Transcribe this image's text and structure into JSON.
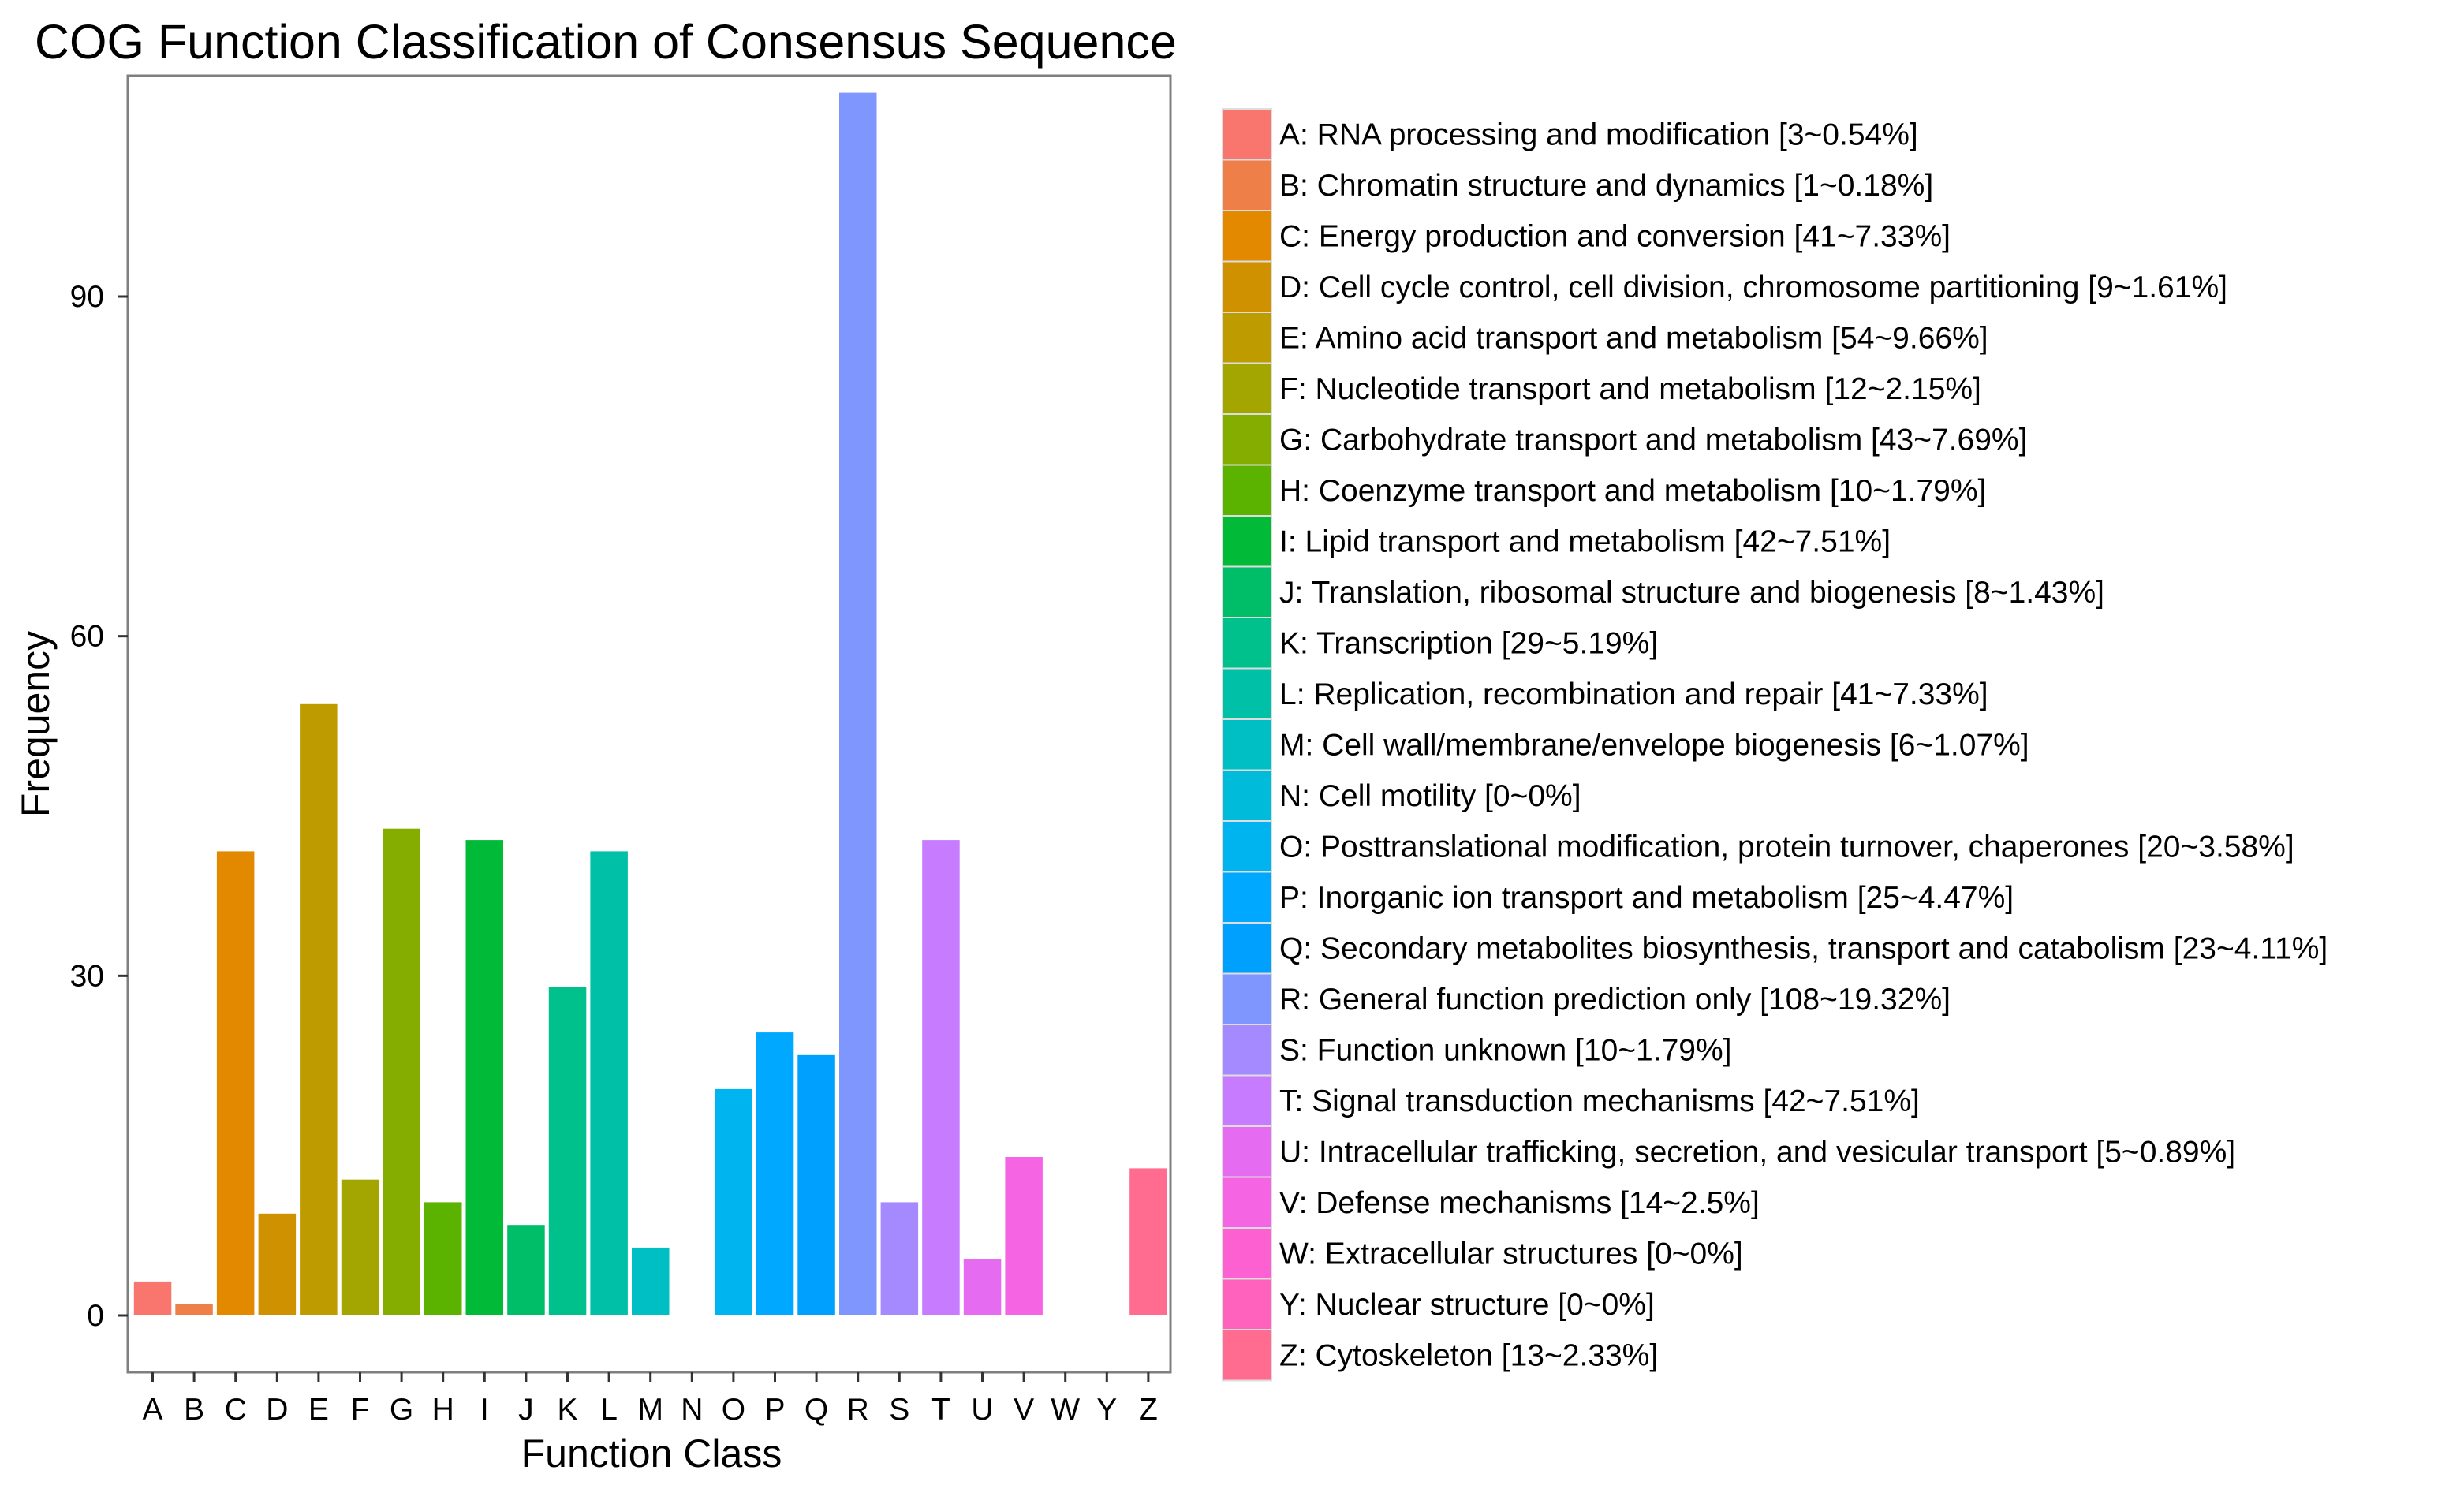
{
  "chart_data": {
    "type": "bar",
    "title": "COG Function Classification of Consensus Sequence",
    "xlabel": "Function Class",
    "ylabel": "Frequency",
    "ylim": [
      0,
      113
    ],
    "yticks": [
      0,
      30,
      60,
      90
    ],
    "grid": false,
    "legend_position": "right",
    "categories": [
      "A",
      "B",
      "C",
      "D",
      "E",
      "F",
      "G",
      "H",
      "I",
      "J",
      "K",
      "L",
      "M",
      "N",
      "O",
      "P",
      "Q",
      "R",
      "S",
      "T",
      "U",
      "V",
      "W",
      "Y",
      "Z"
    ],
    "values": [
      3,
      1,
      41,
      9,
      54,
      12,
      43,
      10,
      42,
      8,
      29,
      41,
      6,
      0,
      20,
      25,
      23,
      108,
      10,
      42,
      5,
      14,
      0,
      0,
      13
    ],
    "colors": [
      "#F8766D",
      "#EF7F48",
      "#E38900",
      "#D09100",
      "#BE9C00",
      "#A3A500",
      "#84AD00",
      "#5BB300",
      "#00BA38",
      "#00BE67",
      "#00C08B",
      "#00C1A7",
      "#00BFC4",
      "#00BBDA",
      "#00B4EF",
      "#00A9FF",
      "#00A0FF",
      "#7F96FF",
      "#A58AFF",
      "#C77CFF",
      "#E56BF0",
      "#F564E3",
      "#FD61D1",
      "#FF62BC",
      "#FF6C90"
    ],
    "legend": [
      "A: RNA processing and modification [3~0.54%]",
      "B: Chromatin structure and dynamics [1~0.18%]",
      "C: Energy production and conversion [41~7.33%]",
      "D: Cell cycle control, cell division, chromosome partitioning [9~1.61%]",
      "E: Amino acid transport and metabolism [54~9.66%]",
      "F: Nucleotide transport and metabolism [12~2.15%]",
      "G: Carbohydrate transport and metabolism [43~7.69%]",
      "H: Coenzyme transport and metabolism [10~1.79%]",
      "I: Lipid transport and metabolism [42~7.51%]",
      "J: Translation, ribosomal structure and biogenesis [8~1.43%]",
      "K: Transcription [29~5.19%]",
      "L: Replication, recombination and repair [41~7.33%]",
      "M: Cell wall/membrane/envelope biogenesis [6~1.07%]",
      "N: Cell motility [0~0%]",
      "O: Posttranslational modification, protein turnover, chaperones [20~3.58%]",
      "P: Inorganic ion transport and metabolism [25~4.47%]",
      "Q: Secondary metabolites biosynthesis, transport and catabolism [23~4.11%]",
      "R: General function prediction only [108~19.32%]",
      "S: Function unknown [10~1.79%]",
      "T: Signal transduction mechanisms [42~7.51%]",
      "U: Intracellular trafficking, secretion, and vesicular transport [5~0.89%]",
      "V: Defense mechanisms [14~2.5%]",
      "W: Extracellular structures [0~0%]",
      "Y: Nuclear structure [0~0%]",
      "Z: Cytoskeleton [13~2.33%]"
    ]
  }
}
